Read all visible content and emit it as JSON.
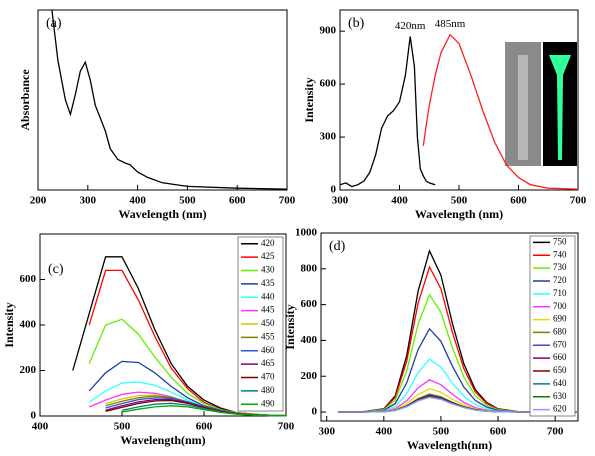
{
  "chart_data": [
    {
      "type": "line",
      "panel_label": "(a)",
      "xlabel": "Wavelength (nm)",
      "ylabel": "Absorbance",
      "xlim": [
        200,
        700
      ],
      "ylim": [
        0,
        1
      ],
      "xticks": [
        200,
        300,
        400,
        500,
        600,
        700
      ],
      "x": [
        228,
        240,
        255,
        265,
        275,
        285,
        295,
        305,
        315,
        325,
        335,
        345,
        360,
        375,
        385,
        400,
        420,
        450,
        500,
        600,
        700
      ],
      "series": [
        {
          "color": "#000000",
          "values": [
            1.0,
            0.72,
            0.5,
            0.42,
            0.53,
            0.66,
            0.71,
            0.61,
            0.47,
            0.4,
            0.33,
            0.23,
            0.17,
            0.15,
            0.14,
            0.1,
            0.07,
            0.04,
            0.02,
            0.01,
            0.005
          ]
        }
      ]
    },
    {
      "type": "line",
      "panel_label": "(b)",
      "xlabel": "Wavelength (nm)",
      "ylabel": "Intensity",
      "xlim": [
        300,
        700
      ],
      "ylim": [
        0,
        1020
      ],
      "xticks": [
        300,
        400,
        500,
        600,
        700
      ],
      "yticks": [
        0,
        300,
        600,
        900
      ],
      "annotations": [
        "420nm",
        "485nm"
      ],
      "x": [
        300,
        310,
        320,
        330,
        340,
        350,
        360,
        370,
        380,
        390,
        400,
        410,
        418,
        425,
        430,
        435,
        440,
        445,
        450,
        460,
        470,
        485,
        500,
        520,
        540,
        560,
        580,
        600,
        620,
        650,
        700
      ],
      "series": [
        {
          "color": "#000000",
          "values": [
            30,
            40,
            20,
            30,
            50,
            100,
            200,
            350,
            420,
            450,
            500,
            650,
            870,
            700,
            300,
            120,
            80,
            50,
            40,
            30,
            null,
            null,
            null,
            null,
            null,
            null,
            null,
            null,
            null,
            null,
            null
          ]
        },
        {
          "color": "#ff2020",
          "values": [
            null,
            null,
            null,
            null,
            null,
            null,
            null,
            null,
            null,
            null,
            null,
            null,
            null,
            null,
            null,
            null,
            250,
            370,
            480,
            650,
            780,
            880,
            830,
            650,
            450,
            270,
            140,
            70,
            30,
            10,
            5
          ]
        }
      ]
    },
    {
      "type": "line",
      "panel_label": "(c)",
      "xlabel": "Wavelength(nm)",
      "ylabel": "Intensity",
      "legend": true,
      "xlim": [
        400,
        700
      ],
      "ylim": [
        0,
        800
      ],
      "xticks": [
        400,
        500,
        600,
        700
      ],
      "yticks": [
        0,
        200,
        400,
        600
      ],
      "x": [
        440,
        460,
        480,
        500,
        520,
        540,
        560,
        580,
        600,
        620,
        640,
        660,
        680,
        700
      ],
      "series": [
        {
          "name": "420",
          "color": "#000000",
          "values": [
            200,
            450,
            700,
            700,
            560,
            380,
            230,
            130,
            70,
            35,
            15,
            8,
            4,
            2
          ]
        },
        {
          "name": "425",
          "color": "#ff0000",
          "values": [
            null,
            400,
            640,
            640,
            510,
            350,
            210,
            120,
            60,
            30,
            15,
            8,
            4,
            2
          ]
        },
        {
          "name": "430",
          "color": "#66ee00",
          "values": [
            null,
            230,
            400,
            425,
            360,
            260,
            170,
            100,
            55,
            28,
            14,
            7,
            3,
            2
          ]
        },
        {
          "name": "435",
          "color": "#1f3f9f",
          "values": [
            null,
            110,
            190,
            240,
            235,
            190,
            130,
            80,
            45,
            25,
            12,
            6,
            3,
            1
          ]
        },
        {
          "name": "440",
          "color": "#33ffff",
          "values": [
            null,
            60,
            110,
            145,
            150,
            135,
            105,
            70,
            40,
            22,
            11,
            5,
            3,
            1
          ]
        },
        {
          "name": "445",
          "color": "#ff33ff",
          "values": [
            null,
            40,
            70,
            95,
            105,
            100,
            85,
            60,
            37,
            20,
            10,
            5,
            2,
            1
          ]
        },
        {
          "name": "450",
          "color": "#cccc00",
          "values": [
            null,
            null,
            55,
            75,
            90,
            92,
            82,
            62,
            40,
            22,
            11,
            5,
            2,
            1
          ]
        },
        {
          "name": "455",
          "color": "#808000",
          "values": [
            null,
            null,
            45,
            65,
            80,
            88,
            82,
            62,
            40,
            22,
            11,
            5,
            2,
            1
          ]
        },
        {
          "name": "460",
          "color": "#3355cc",
          "values": [
            null,
            null,
            35,
            55,
            72,
            80,
            78,
            62,
            40,
            22,
            11,
            5,
            2,
            1
          ]
        },
        {
          "name": "465",
          "color": "#800080",
          "values": [
            null,
            null,
            25,
            45,
            62,
            72,
            72,
            58,
            38,
            21,
            10,
            5,
            2,
            1
          ]
        },
        {
          "name": "470",
          "color": "#800000",
          "values": [
            null,
            null,
            20,
            38,
            55,
            66,
            68,
            56,
            37,
            20,
            10,
            5,
            2,
            1
          ]
        },
        {
          "name": "480",
          "color": "#008080",
          "values": [
            null,
            null,
            null,
            25,
            40,
            52,
            56,
            48,
            33,
            18,
            9,
            4,
            2,
            1
          ]
        },
        {
          "name": "490",
          "color": "#00aa00",
          "values": [
            null,
            null,
            null,
            18,
            30,
            40,
            45,
            40,
            28,
            16,
            8,
            4,
            2,
            1
          ]
        }
      ]
    },
    {
      "type": "line",
      "panel_label": "(d)",
      "xlabel": "Wavelength(nm)",
      "ylabel": "Intensity",
      "legend": true,
      "xlim": [
        290,
        740
      ],
      "ylim": [
        -50,
        1000
      ],
      "xticks": [
        300,
        400,
        500,
        600,
        700
      ],
      "yticks": [
        0,
        200,
        400,
        600,
        800,
        1000
      ],
      "x": [
        320,
        360,
        400,
        420,
        440,
        460,
        480,
        500,
        520,
        540,
        560,
        580,
        600,
        640,
        700,
        740
      ],
      "series": [
        {
          "name": "750",
          "color": "#000000",
          "values": [
            0,
            0,
            18,
            90,
            315,
            675,
            900,
            765,
            495,
            270,
            126,
            54,
            18,
            0,
            0,
            0
          ]
        },
        {
          "name": "740",
          "color": "#ff0000",
          "values": [
            0,
            0,
            16,
            81,
            284,
            608,
            810,
            689,
            446,
            243,
            113,
            49,
            16,
            0,
            0,
            0
          ]
        },
        {
          "name": "730",
          "color": "#66ee00",
          "values": [
            0,
            0,
            13,
            66,
            229,
            491,
            655,
            557,
            360,
            197,
            92,
            39,
            13,
            0,
            0,
            0
          ]
        },
        {
          "name": "720",
          "color": "#1f3f9f",
          "values": [
            0,
            0,
            9,
            47,
            163,
            349,
            465,
            395,
            256,
            140,
            65,
            28,
            9,
            0,
            0,
            0
          ]
        },
        {
          "name": "710",
          "color": "#33ffff",
          "values": [
            0,
            0,
            6,
            30,
            103,
            221,
            295,
            251,
            162,
            89,
            41,
            18,
            6,
            0,
            0,
            0
          ]
        },
        {
          "name": "700",
          "color": "#ff33ff",
          "values": [
            0,
            0,
            4,
            18,
            63,
            135,
            180,
            153,
            99,
            54,
            25,
            11,
            4,
            0,
            0,
            0
          ]
        },
        {
          "name": "690",
          "color": "#dddd00",
          "values": [
            0,
            0,
            3,
            13,
            46,
            98,
            130,
            111,
            72,
            39,
            18,
            8,
            3,
            0,
            0,
            0
          ]
        },
        {
          "name": "680",
          "color": "#808000",
          "values": [
            0,
            0,
            2,
            10,
            35,
            75,
            100,
            85,
            55,
            30,
            14,
            6,
            2,
            0,
            0,
            0
          ]
        },
        {
          "name": "670",
          "color": "#6633cc",
          "values": [
            0,
            0,
            2,
            10,
            33,
            71,
            95,
            81,
            52,
            29,
            13,
            6,
            2,
            0,
            0,
            0
          ]
        },
        {
          "name": "660",
          "color": "#800080",
          "values": [
            0,
            0,
            2,
            9,
            33,
            70,
            93,
            79,
            51,
            28,
            13,
            6,
            2,
            0,
            0,
            0
          ]
        },
        {
          "name": "650",
          "color": "#800000",
          "values": [
            0,
            0,
            2,
            9,
            32,
            68,
            90,
            77,
            50,
            27,
            13,
            5,
            2,
            0,
            0,
            0
          ]
        },
        {
          "name": "640",
          "color": "#008080",
          "values": [
            0,
            0,
            2,
            9,
            31,
            66,
            88,
            75,
            48,
            26,
            12,
            5,
            2,
            0,
            0,
            0
          ]
        },
        {
          "name": "630",
          "color": "#008000",
          "values": [
            0,
            0,
            2,
            9,
            30,
            64,
            85,
            72,
            47,
            26,
            12,
            5,
            2,
            0,
            0,
            0
          ]
        },
        {
          "name": "620",
          "color": "#9999ff",
          "values": [
            0,
            0,
            2,
            8,
            29,
            62,
            82,
            70,
            45,
            25,
            11,
            5,
            2,
            0,
            0,
            0
          ]
        }
      ]
    }
  ]
}
